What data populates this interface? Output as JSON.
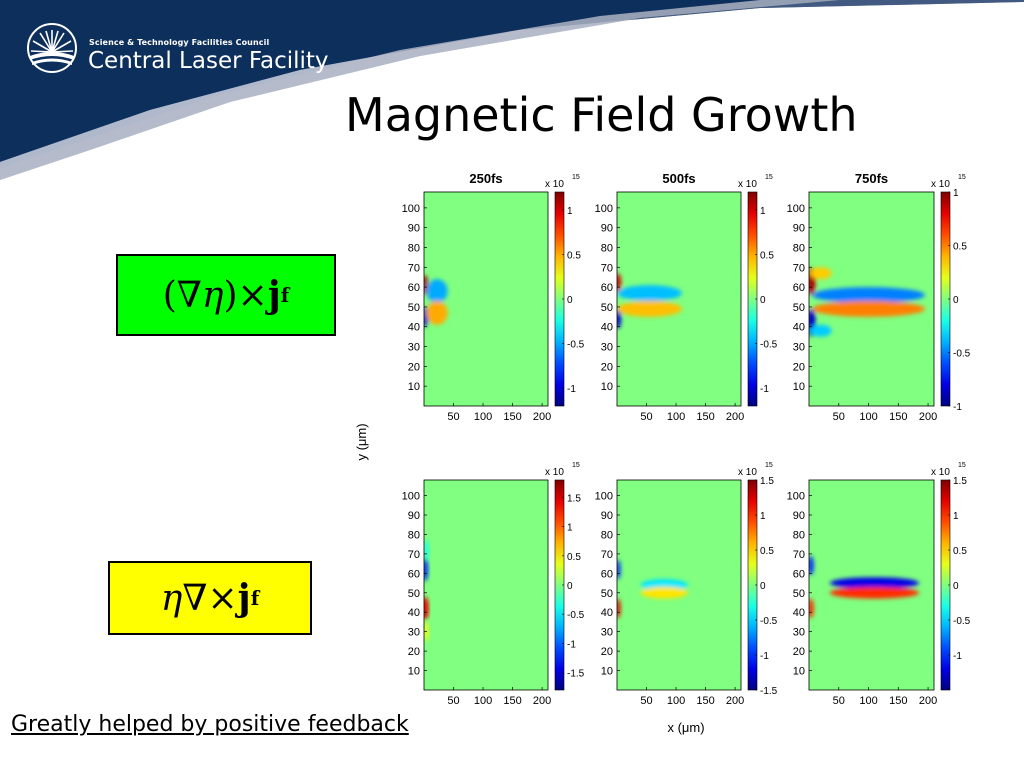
{
  "header": {
    "organization": "Science & Technology Facilities Council",
    "facility": "Central Laser Facility"
  },
  "slide": {
    "title": "Magnetic Field Growth",
    "footnote": "Greatly helped by positive feedback"
  },
  "equations": {
    "top": {
      "lhs": "(∇",
      "eta": "η",
      "rp": ")",
      "times": "×",
      "j": "j",
      "sub": "f",
      "box_color": "#00ff00"
    },
    "bottom": {
      "eta": "η",
      "nabla": "∇",
      "times": "×",
      "j": "j",
      "sub": "f",
      "box_color": "#ffff00"
    }
  },
  "chart_data": {
    "type": "heatmap",
    "xlabel": "x (μm)",
    "ylabel": "y (μm)",
    "xticks": [
      50,
      100,
      150,
      200
    ],
    "yticks": [
      10,
      20,
      30,
      40,
      50,
      60,
      70,
      80,
      90,
      100
    ],
    "colorbar_exponent": "x 10",
    "colorbar_power": "15",
    "colormap": "jet",
    "panels": [
      {
        "row": 0,
        "title": "250fs",
        "cticks": [
          "1",
          "0.5",
          "0",
          "-0.5",
          "-1"
        ],
        "clim": [
          -1.2,
          1.2
        ]
      },
      {
        "row": 0,
        "title": "500fs",
        "cticks": [
          "1",
          "0.5",
          "0",
          "-0.5",
          "-1"
        ],
        "clim": [
          -1.2,
          1.2
        ]
      },
      {
        "row": 0,
        "title": "750fs",
        "cticks": [
          "1",
          "0.5",
          "0",
          "-0.5",
          "-1"
        ],
        "clim": [
          -1.0,
          1.0
        ]
      },
      {
        "row": 1,
        "title": "",
        "cticks": [
          "1.5",
          "1",
          "0.5",
          "0",
          "-0.5",
          "-1",
          "-1.5"
        ],
        "clim": [
          -1.8,
          1.8
        ]
      },
      {
        "row": 1,
        "title": "",
        "cticks": [
          "1.5",
          "1",
          "0.5",
          "0",
          "-0.5",
          "-1",
          "-1.5"
        ],
        "clim": [
          -1.5,
          1.5
        ]
      },
      {
        "row": 1,
        "title": "",
        "cticks": [
          "1.5",
          "1",
          "0.5",
          "0",
          "-0.5",
          "-1"
        ],
        "clim": [
          -1.5,
          1.5
        ]
      }
    ]
  }
}
